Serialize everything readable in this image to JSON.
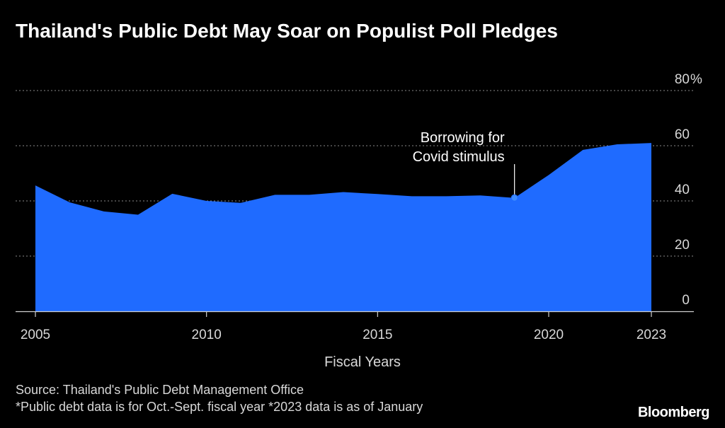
{
  "title": "Thailand's Public Debt May Soar on Populist Poll Pledges",
  "source_line": "Source: Thailand's Public Debt Management Office",
  "footnote_line": "*Public debt data is for Oct.-Sept. fiscal year *2023 data is as of January",
  "brand": "Bloomberg",
  "colors": {
    "area": "#1f6bff",
    "background": "#000000"
  },
  "chart_data": {
    "type": "area",
    "title": "Thailand's Public Debt May Soar on Populist Poll Pledges",
    "xlabel": "Fiscal Years",
    "ylabel": "",
    "x": [
      2005,
      2006,
      2007,
      2008,
      2009,
      2010,
      2011,
      2012,
      2013,
      2014,
      2015,
      2016,
      2017,
      2018,
      2019,
      2020,
      2021,
      2022,
      2023
    ],
    "series": [
      {
        "values": [
          45.6,
          39.5,
          36.2,
          35.0,
          42.6,
          40.0,
          39.3,
          42.2,
          42.2,
          43.2,
          42.5,
          41.7,
          41.7,
          42.0,
          41.1,
          49.4,
          58.5,
          60.5,
          61.0
        ]
      }
    ],
    "ylim": [
      0,
      80
    ],
    "yticks": [
      0,
      20,
      40,
      60,
      80
    ],
    "ytick_labels": [
      "0",
      "20",
      "40",
      "60",
      "80"
    ],
    "y_unit": "%",
    "xticks": [
      2005,
      2010,
      2015,
      2020,
      2023
    ],
    "xtick_labels": [
      "2005",
      "2010",
      "2015",
      "2020",
      "2023"
    ],
    "grid": true,
    "annotation": {
      "x": 2019,
      "y": 41.1,
      "lines": [
        "Borrowing for",
        "Covid stimulus"
      ]
    }
  }
}
